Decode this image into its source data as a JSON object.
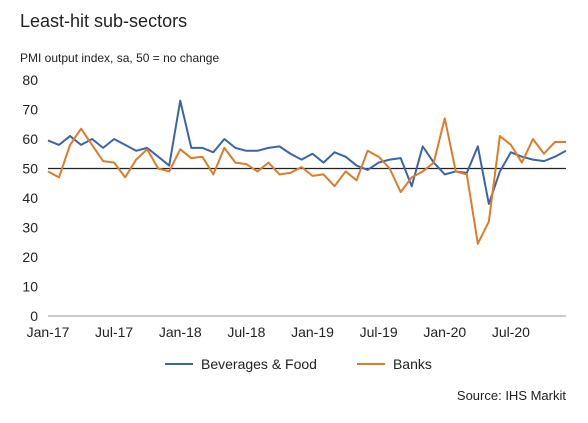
{
  "chart_data": {
    "type": "line",
    "title": "Least-hit sub-sectors",
    "subtitle": "PMI output index, sa, 50 = no change",
    "source": "Source: IHS Markit",
    "categories": [
      "Jan-17",
      null,
      null,
      null,
      null,
      null,
      "Jul-17",
      null,
      null,
      null,
      null,
      null,
      "Jan-18",
      null,
      null,
      null,
      null,
      null,
      "Jul-18",
      null,
      null,
      null,
      null,
      null,
      "Jan-19",
      null,
      null,
      null,
      null,
      null,
      "Jul-19",
      null,
      null,
      null,
      null,
      null,
      "Jan-20",
      null,
      null,
      null,
      null,
      null,
      "Jul-20",
      null,
      null,
      null,
      null,
      null
    ],
    "series": [
      {
        "name": "Beverages & Food",
        "color": "#3b64ad",
        "values": [
          59.5,
          58,
          61,
          58,
          60,
          57,
          60,
          58,
          56,
          57,
          54,
          51,
          73,
          57,
          57,
          55.5,
          60,
          57,
          56,
          56,
          57,
          57.5,
          55,
          53,
          55,
          52,
          55.5,
          54,
          51,
          49.5,
          52,
          53,
          53.5,
          44,
          57.5,
          52,
          48,
          49,
          48.5,
          57.5,
          38,
          49,
          55.5,
          54,
          53,
          52.5,
          54,
          56
        ]
      },
      {
        "name": "Banks",
        "color": "#e07b26",
        "values": [
          49,
          47,
          58,
          63.5,
          58,
          52.5,
          52,
          47,
          53,
          56.5,
          50,
          49,
          56.5,
          53.5,
          54,
          48,
          57,
          52,
          51.5,
          49,
          52,
          48,
          48.5,
          50.5,
          47.5,
          48,
          44,
          49,
          46,
          56,
          54,
          50,
          42,
          47,
          49,
          52,
          67,
          49,
          48,
          24.5,
          32,
          61,
          58,
          52,
          60,
          55,
          59,
          59
        ]
      }
    ],
    "ylim": [
      0,
      80
    ],
    "yticks": [
      0,
      10,
      20,
      30,
      40,
      50,
      60,
      70,
      80
    ],
    "reference_line": 50,
    "grid": false,
    "legend": "bottom"
  }
}
